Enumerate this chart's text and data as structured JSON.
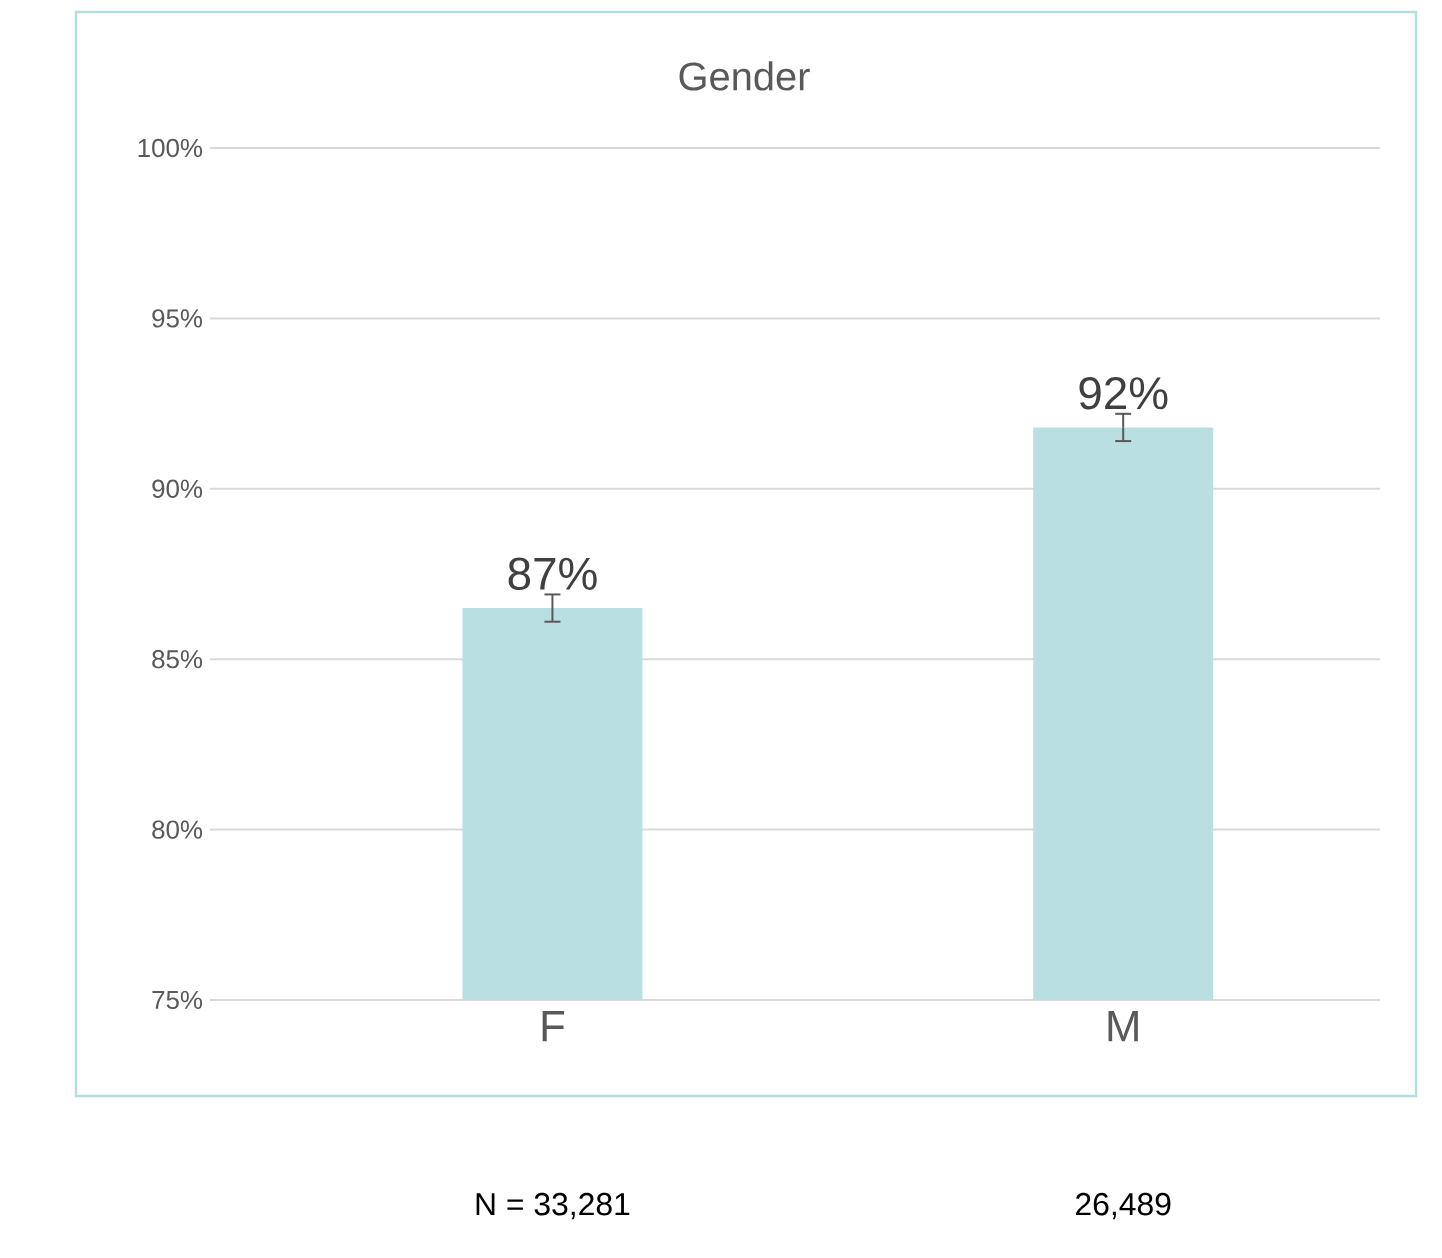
{
  "chart_data": {
    "type": "bar",
    "title": "Gender",
    "categories": [
      "F",
      "M"
    ],
    "values": [
      86.5,
      91.8
    ],
    "errors": [
      0.4,
      0.4
    ],
    "value_labels": [
      "87%",
      "92%"
    ],
    "color": "#b9dfe2",
    "ylim": [
      75,
      100
    ],
    "yticks": [
      {
        "value": 75,
        "label": "75%"
      },
      {
        "value": 80,
        "label": "80%"
      },
      {
        "value": 85,
        "label": "85%"
      },
      {
        "value": 90,
        "label": "90%"
      },
      {
        "value": 95,
        "label": "95%"
      },
      {
        "value": 100,
        "label": "100%"
      }
    ],
    "grid": "y",
    "annotations": [
      "N = 33,281",
      "26,489"
    ]
  }
}
